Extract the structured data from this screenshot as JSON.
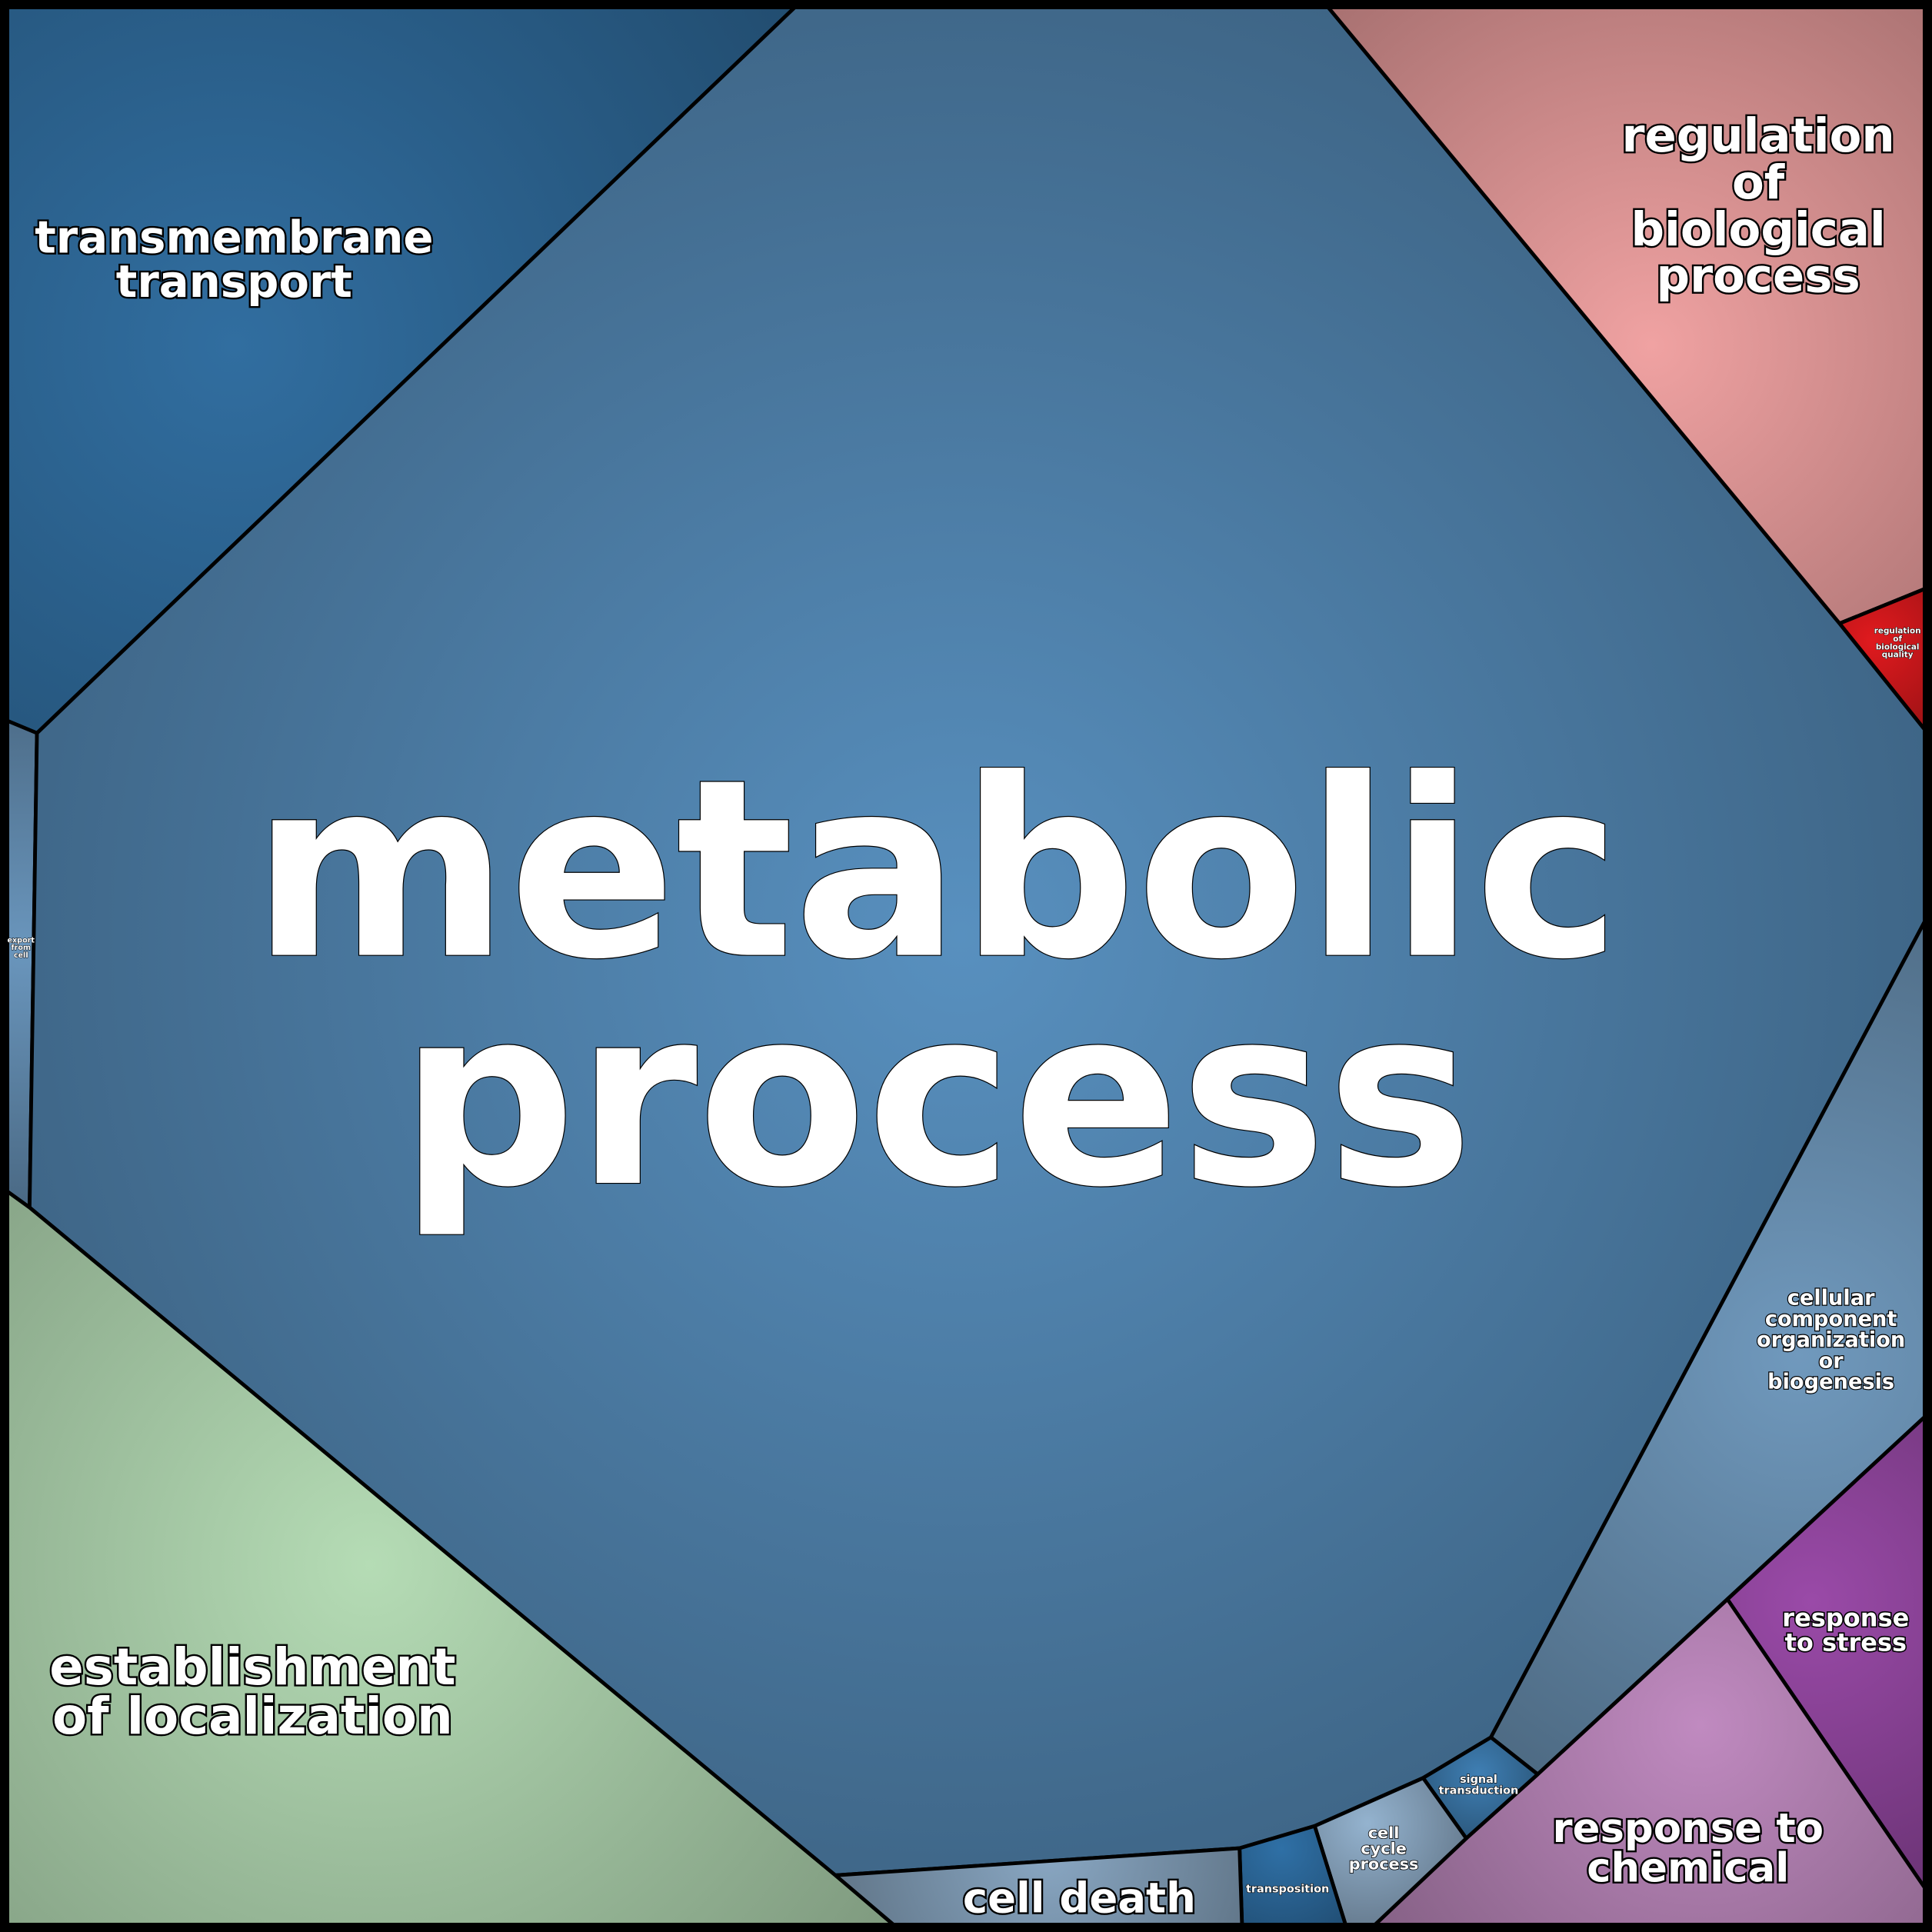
{
  "cells": {
    "metabolic": {
      "lines": [
        "metabolic",
        "process"
      ],
      "color": "#5890bf"
    },
    "transmembrane": {
      "lines": [
        "transmembrane",
        "transport"
      ],
      "color": "#316ea0"
    },
    "export": {
      "lines": [
        "export",
        "from",
        "cell"
      ],
      "color": "#6a96bd"
    },
    "regulation_process": {
      "lines": [
        "regulation",
        "of",
        "biological",
        "process"
      ],
      "color": "#f0a2a2"
    },
    "regulation_quality": {
      "lines": [
        "regulation",
        "of",
        "biological",
        "quality"
      ],
      "color": "#e01a1e"
    },
    "cellular_component": {
      "lines": [
        "cellular",
        "component",
        "organization",
        "or",
        "biogenesis"
      ],
      "color": "#7099bd"
    },
    "response_stress": {
      "lines": [
        "response",
        "to stress"
      ],
      "color": "#9a4aa8"
    },
    "response_chemical": {
      "lines": [
        "response to",
        "chemical"
      ],
      "color": "#c08ac0"
    },
    "signal": {
      "lines": [
        "signal",
        "transduction"
      ],
      "color": "#3f7fb4"
    },
    "cell_cycle": {
      "lines": [
        "cell",
        "cycle",
        "process"
      ],
      "color": "#94b3cf"
    },
    "transposition": {
      "lines": [
        "transposition"
      ],
      "color": "#2f70a6"
    },
    "cell_death": {
      "lines": [
        "cell death"
      ],
      "color": "#8aa8c4"
    },
    "localization": {
      "lines": [
        "establishment",
        "of localization"
      ],
      "color": "#b5dcb5"
    }
  }
}
